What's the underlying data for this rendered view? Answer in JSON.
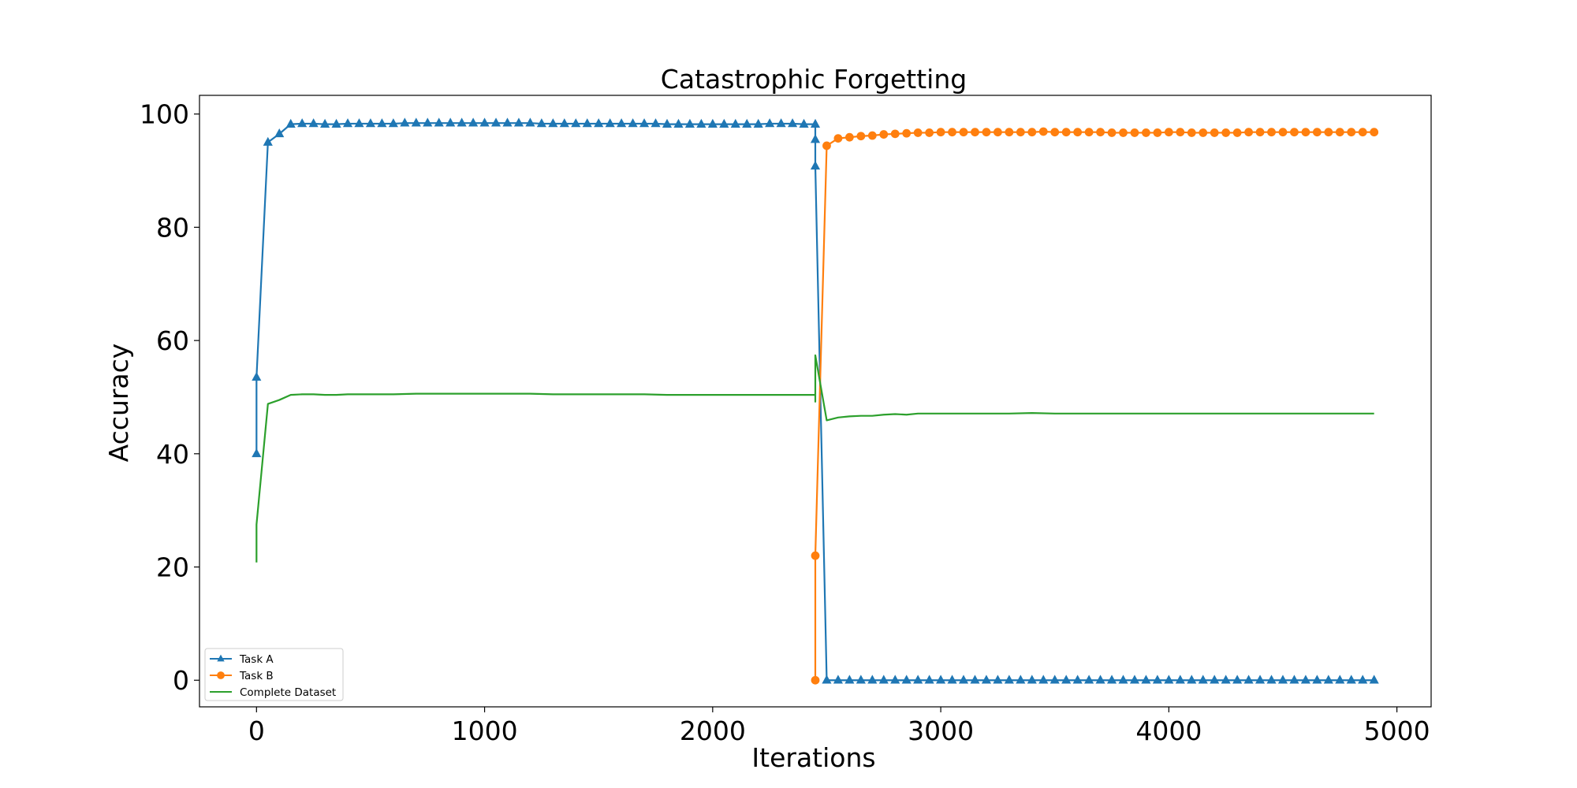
{
  "chart_data": {
    "type": "line",
    "title": "Catastrophic Forgetting",
    "xlabel": "Iterations",
    "ylabel": "Accuracy",
    "xlim": [
      -250,
      5150
    ],
    "ylim": [
      -4.7,
      103.3
    ],
    "xticks": [
      0,
      1000,
      2000,
      3000,
      4000,
      5000
    ],
    "yticks": [
      0,
      20,
      40,
      60,
      80,
      100
    ],
    "grid": false,
    "legend_position": "lower-left",
    "series": [
      {
        "name": "Task A",
        "color": "#1f77b4",
        "marker": "triangle",
        "points": [
          [
            0,
            40
          ],
          [
            0,
            53.5
          ],
          [
            50,
            95
          ],
          [
            100,
            96.5
          ],
          [
            150,
            98.2
          ],
          [
            200,
            98.3
          ],
          [
            250,
            98.3
          ],
          [
            300,
            98.2
          ],
          [
            350,
            98.2
          ],
          [
            400,
            98.3
          ],
          [
            450,
            98.3
          ],
          [
            500,
            98.3
          ],
          [
            550,
            98.3
          ],
          [
            600,
            98.3
          ],
          [
            650,
            98.4
          ],
          [
            700,
            98.4
          ],
          [
            750,
            98.4
          ],
          [
            800,
            98.4
          ],
          [
            850,
            98.4
          ],
          [
            900,
            98.4
          ],
          [
            950,
            98.4
          ],
          [
            1000,
            98.4
          ],
          [
            1050,
            98.4
          ],
          [
            1100,
            98.4
          ],
          [
            1150,
            98.4
          ],
          [
            1200,
            98.4
          ],
          [
            1250,
            98.3
          ],
          [
            1300,
            98.3
          ],
          [
            1350,
            98.3
          ],
          [
            1400,
            98.3
          ],
          [
            1450,
            98.3
          ],
          [
            1500,
            98.3
          ],
          [
            1550,
            98.3
          ],
          [
            1600,
            98.3
          ],
          [
            1650,
            98.3
          ],
          [
            1700,
            98.3
          ],
          [
            1750,
            98.3
          ],
          [
            1800,
            98.2
          ],
          [
            1850,
            98.2
          ],
          [
            1900,
            98.2
          ],
          [
            1950,
            98.2
          ],
          [
            2000,
            98.2
          ],
          [
            2050,
            98.2
          ],
          [
            2100,
            98.2
          ],
          [
            2150,
            98.2
          ],
          [
            2200,
            98.2
          ],
          [
            2250,
            98.3
          ],
          [
            2300,
            98.3
          ],
          [
            2350,
            98.3
          ],
          [
            2400,
            98.2
          ],
          [
            2450,
            98.2
          ],
          [
            2450,
            95.5
          ],
          [
            2450,
            90.8
          ],
          [
            2500,
            0
          ],
          [
            2550,
            0
          ],
          [
            2600,
            0
          ],
          [
            2650,
            0
          ],
          [
            2700,
            0
          ],
          [
            2750,
            0
          ],
          [
            2800,
            0
          ],
          [
            2850,
            0
          ],
          [
            2900,
            0
          ],
          [
            2950,
            0
          ],
          [
            3000,
            0
          ],
          [
            3050,
            0
          ],
          [
            3100,
            0
          ],
          [
            3150,
            0
          ],
          [
            3200,
            0
          ],
          [
            3250,
            0
          ],
          [
            3300,
            0
          ],
          [
            3350,
            0
          ],
          [
            3400,
            0
          ],
          [
            3450,
            0
          ],
          [
            3500,
            0
          ],
          [
            3550,
            0
          ],
          [
            3600,
            0
          ],
          [
            3650,
            0
          ],
          [
            3700,
            0
          ],
          [
            3750,
            0
          ],
          [
            3800,
            0
          ],
          [
            3850,
            0
          ],
          [
            3900,
            0
          ],
          [
            3950,
            0
          ],
          [
            4000,
            0
          ],
          [
            4050,
            0
          ],
          [
            4100,
            0
          ],
          [
            4150,
            0
          ],
          [
            4200,
            0
          ],
          [
            4250,
            0
          ],
          [
            4300,
            0
          ],
          [
            4350,
            0
          ],
          [
            4400,
            0
          ],
          [
            4450,
            0
          ],
          [
            4500,
            0
          ],
          [
            4550,
            0
          ],
          [
            4600,
            0
          ],
          [
            4650,
            0
          ],
          [
            4700,
            0
          ],
          [
            4750,
            0
          ],
          [
            4800,
            0
          ],
          [
            4850,
            0
          ],
          [
            4900,
            0
          ]
        ]
      },
      {
        "name": "Task B",
        "color": "#ff7f0e",
        "marker": "circle",
        "points": [
          [
            2450,
            0
          ],
          [
            2450,
            22
          ],
          [
            2500,
            94.4
          ],
          [
            2550,
            95.7
          ],
          [
            2600,
            95.9
          ],
          [
            2650,
            96.1
          ],
          [
            2700,
            96.2
          ],
          [
            2750,
            96.4
          ],
          [
            2800,
            96.5
          ],
          [
            2850,
            96.6
          ],
          [
            2900,
            96.7
          ],
          [
            2950,
            96.7
          ],
          [
            3000,
            96.8
          ],
          [
            3050,
            96.8
          ],
          [
            3100,
            96.8
          ],
          [
            3150,
            96.8
          ],
          [
            3200,
            96.8
          ],
          [
            3250,
            96.8
          ],
          [
            3300,
            96.8
          ],
          [
            3350,
            96.8
          ],
          [
            3400,
            96.8
          ],
          [
            3450,
            96.9
          ],
          [
            3500,
            96.8
          ],
          [
            3550,
            96.8
          ],
          [
            3600,
            96.8
          ],
          [
            3650,
            96.8
          ],
          [
            3700,
            96.8
          ],
          [
            3750,
            96.7
          ],
          [
            3800,
            96.7
          ],
          [
            3850,
            96.7
          ],
          [
            3900,
            96.7
          ],
          [
            3950,
            96.7
          ],
          [
            4000,
            96.8
          ],
          [
            4050,
            96.8
          ],
          [
            4100,
            96.7
          ],
          [
            4150,
            96.7
          ],
          [
            4200,
            96.7
          ],
          [
            4250,
            96.7
          ],
          [
            4300,
            96.7
          ],
          [
            4350,
            96.8
          ],
          [
            4400,
            96.8
          ],
          [
            4450,
            96.8
          ],
          [
            4500,
            96.8
          ],
          [
            4550,
            96.8
          ],
          [
            4600,
            96.8
          ],
          [
            4650,
            96.8
          ],
          [
            4700,
            96.8
          ],
          [
            4750,
            96.8
          ],
          [
            4800,
            96.8
          ],
          [
            4850,
            96.8
          ],
          [
            4900,
            96.8
          ]
        ]
      },
      {
        "name": "Complete Dataset",
        "color": "#2ca02c",
        "marker": "none",
        "points": [
          [
            0,
            20.8
          ],
          [
            0,
            27.5
          ],
          [
            50,
            48.8
          ],
          [
            100,
            49.5
          ],
          [
            150,
            50.4
          ],
          [
            200,
            50.5
          ],
          [
            250,
            50.5
          ],
          [
            300,
            50.4
          ],
          [
            350,
            50.4
          ],
          [
            400,
            50.5
          ],
          [
            450,
            50.5
          ],
          [
            500,
            50.5
          ],
          [
            600,
            50.5
          ],
          [
            700,
            50.6
          ],
          [
            800,
            50.6
          ],
          [
            900,
            50.6
          ],
          [
            1000,
            50.6
          ],
          [
            1100,
            50.6
          ],
          [
            1200,
            50.6
          ],
          [
            1300,
            50.5
          ],
          [
            1400,
            50.5
          ],
          [
            1500,
            50.5
          ],
          [
            1600,
            50.5
          ],
          [
            1700,
            50.5
          ],
          [
            1800,
            50.4
          ],
          [
            1900,
            50.4
          ],
          [
            2000,
            50.4
          ],
          [
            2100,
            50.4
          ],
          [
            2200,
            50.4
          ],
          [
            2300,
            50.4
          ],
          [
            2400,
            50.4
          ],
          [
            2450,
            50.4
          ],
          [
            2450,
            49.2
          ],
          [
            2450,
            57.4
          ],
          [
            2500,
            45.9
          ],
          [
            2550,
            46.4
          ],
          [
            2600,
            46.6
          ],
          [
            2650,
            46.7
          ],
          [
            2700,
            46.7
          ],
          [
            2750,
            46.9
          ],
          [
            2800,
            47.0
          ],
          [
            2850,
            46.9
          ],
          [
            2900,
            47.1
          ],
          [
            2950,
            47.1
          ],
          [
            3000,
            47.1
          ],
          [
            3100,
            47.1
          ],
          [
            3200,
            47.1
          ],
          [
            3300,
            47.1
          ],
          [
            3400,
            47.2
          ],
          [
            3500,
            47.1
          ],
          [
            3600,
            47.1
          ],
          [
            3700,
            47.1
          ],
          [
            3800,
            47.1
          ],
          [
            3900,
            47.1
          ],
          [
            4000,
            47.1
          ],
          [
            4100,
            47.1
          ],
          [
            4200,
            47.1
          ],
          [
            4300,
            47.1
          ],
          [
            4400,
            47.1
          ],
          [
            4500,
            47.1
          ],
          [
            4600,
            47.1
          ],
          [
            4700,
            47.1
          ],
          [
            4800,
            47.1
          ],
          [
            4900,
            47.1
          ]
        ]
      }
    ]
  }
}
